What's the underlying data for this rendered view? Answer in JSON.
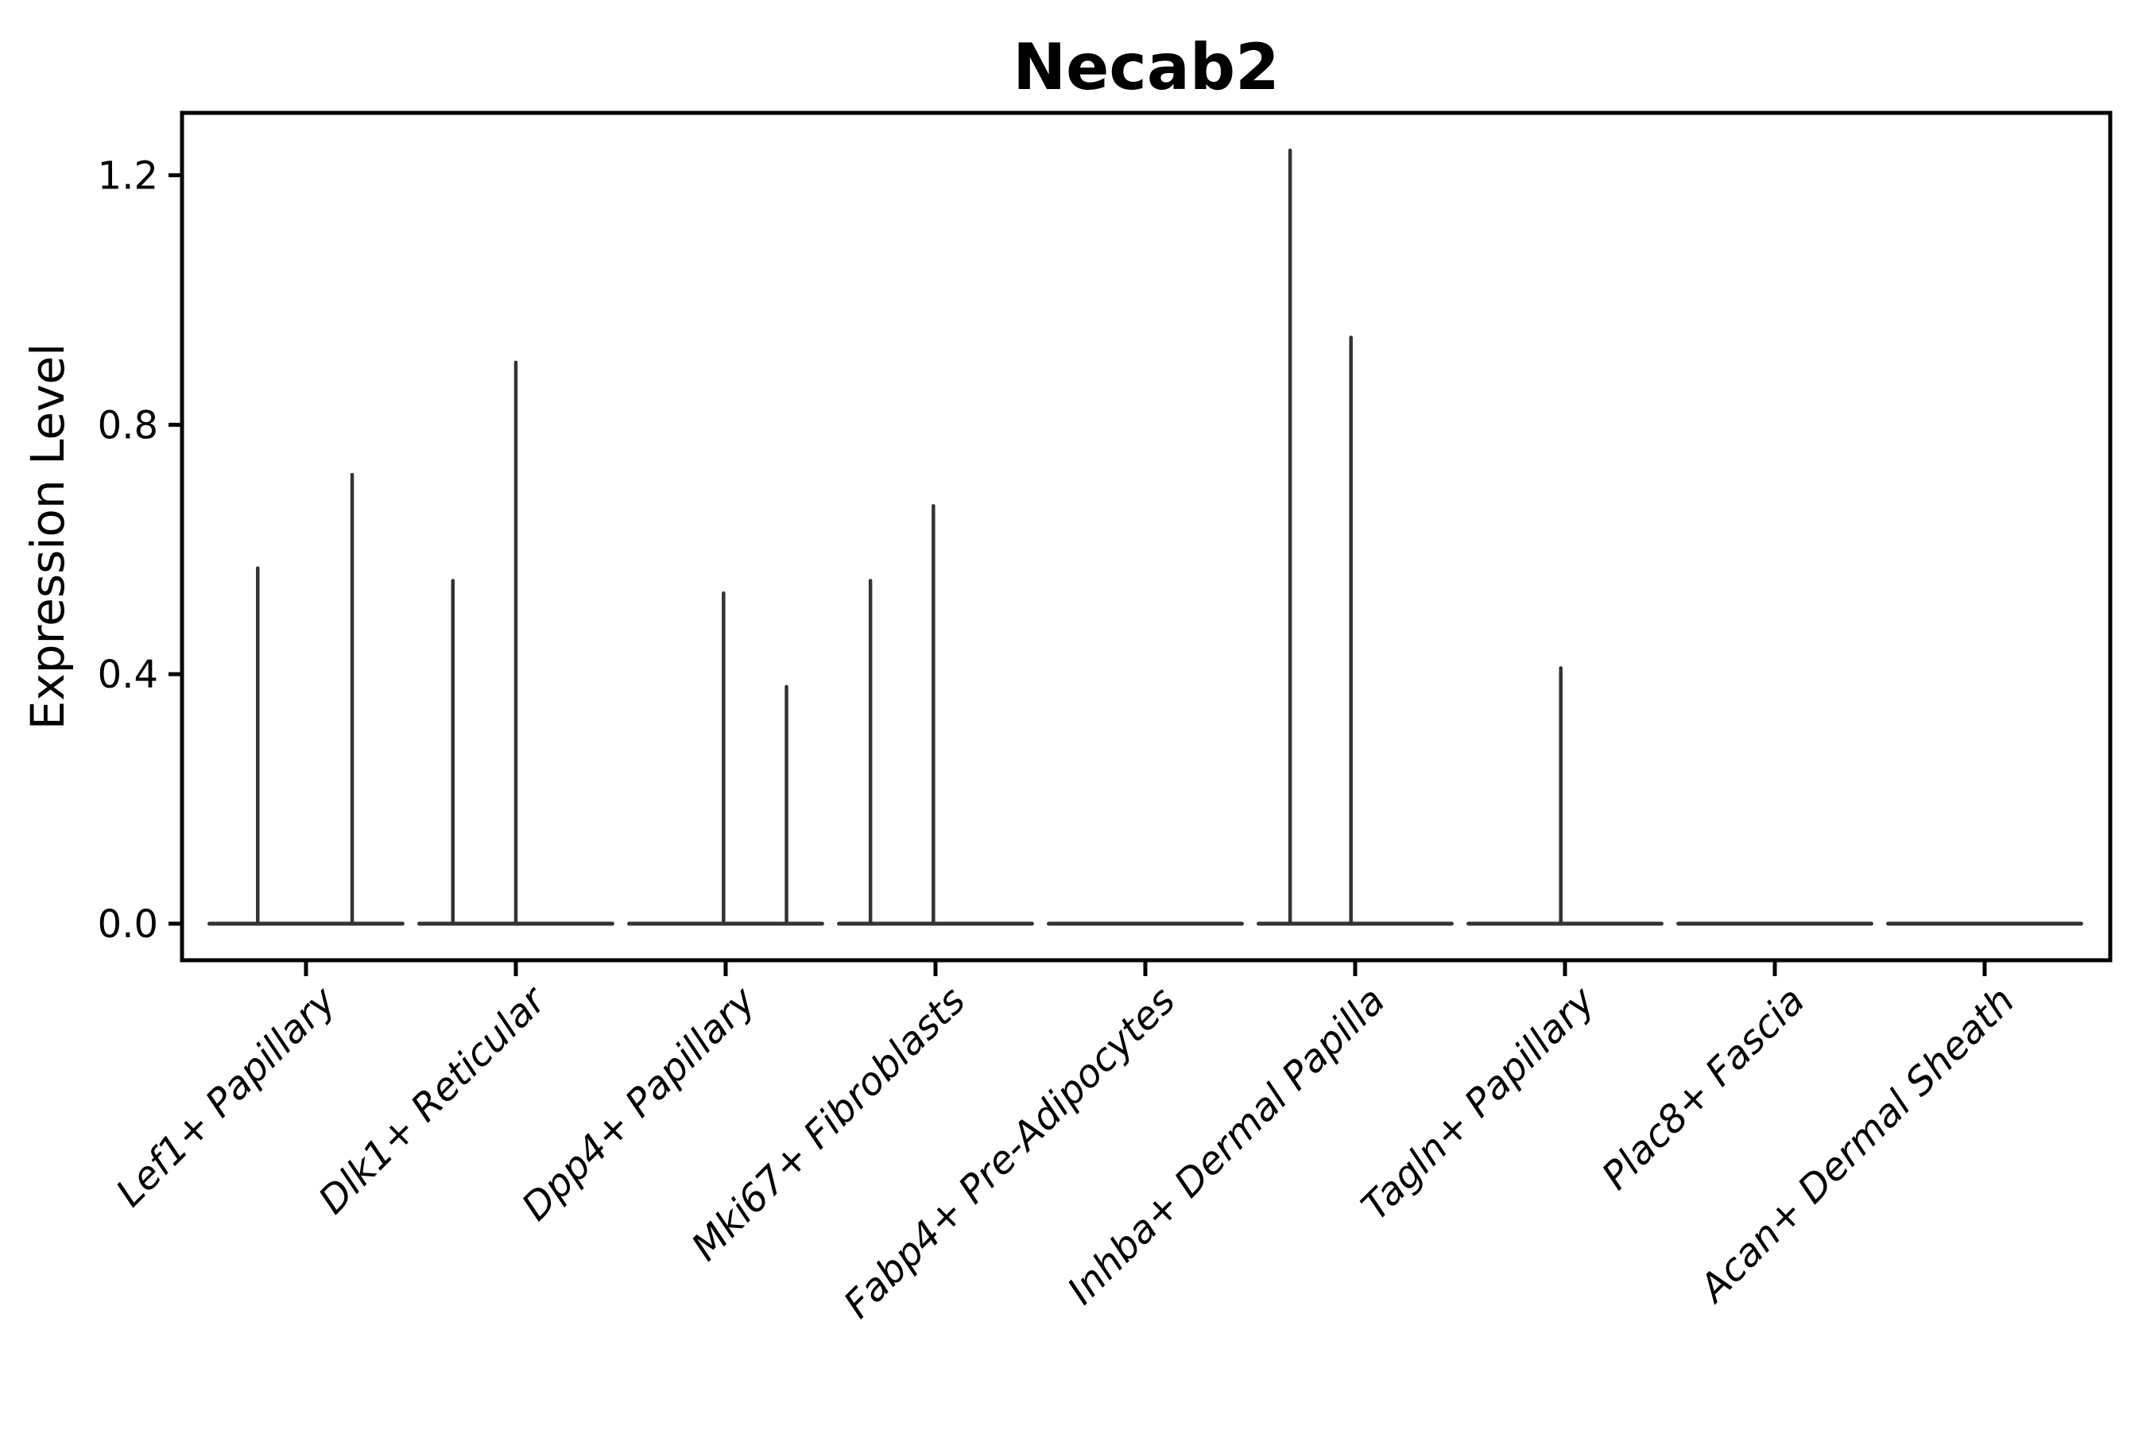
{
  "figure": {
    "background": "#ffffff"
  },
  "chart_data": {
    "type": "violin",
    "title": "Necab2",
    "ylabel": "Expression Level",
    "xlabel": "",
    "y_ticks": [
      0.0,
      0.4,
      0.8,
      1.2
    ],
    "y_tick_labels": [
      "0.0",
      "0.4",
      "0.8",
      "1.2"
    ],
    "ylim": [
      -0.06,
      1.3
    ],
    "grid": false,
    "legend": "none",
    "axis_color": "#000000",
    "violin_color": "#333333",
    "categories": [
      "Lef1+ Papillary",
      "Dlk1+ Reticular",
      "Dpp4+ Papillary",
      "Mki67+ Fibroblasts",
      "Fabp4+ Pre-Adipocytes",
      "Inhba+ Dermal Papilla",
      "Tagln+ Papillary",
      "Plac8+ Fascia",
      "Acan+ Dermal Sheath"
    ],
    "violins": [
      {
        "category": "Lef1+ Papillary",
        "spikes": [
          {
            "offset": -0.23,
            "peak": 0.57
          },
          {
            "offset": 0.22,
            "peak": 0.72
          }
        ]
      },
      {
        "category": "Dlk1+ Reticular",
        "spikes": [
          {
            "offset": -0.3,
            "peak": 0.55
          },
          {
            "offset": 0.0,
            "peak": 0.9
          }
        ]
      },
      {
        "category": "Dpp4+ Papillary",
        "spikes": [
          {
            "offset": -0.01,
            "peak": 0.53
          },
          {
            "offset": 0.29,
            "peak": 0.38
          }
        ]
      },
      {
        "category": "Mki67+ Fibroblasts",
        "spikes": [
          {
            "offset": -0.31,
            "peak": 0.55
          },
          {
            "offset": -0.01,
            "peak": 0.67
          }
        ]
      },
      {
        "category": "Fabp4+ Pre-Adipocytes",
        "spikes": []
      },
      {
        "category": "Inhba+ Dermal Papilla",
        "spikes": [
          {
            "offset": -0.31,
            "peak": 1.24
          },
          {
            "offset": -0.02,
            "peak": 0.94
          }
        ]
      },
      {
        "category": "Tagln+ Papillary",
        "spikes": [
          {
            "offset": -0.02,
            "peak": 0.41
          }
        ]
      },
      {
        "category": "Plac8+ Fascia",
        "spikes": []
      },
      {
        "category": "Acan+ Dermal Sheath",
        "spikes": []
      }
    ],
    "base_half_width": 0.46
  }
}
